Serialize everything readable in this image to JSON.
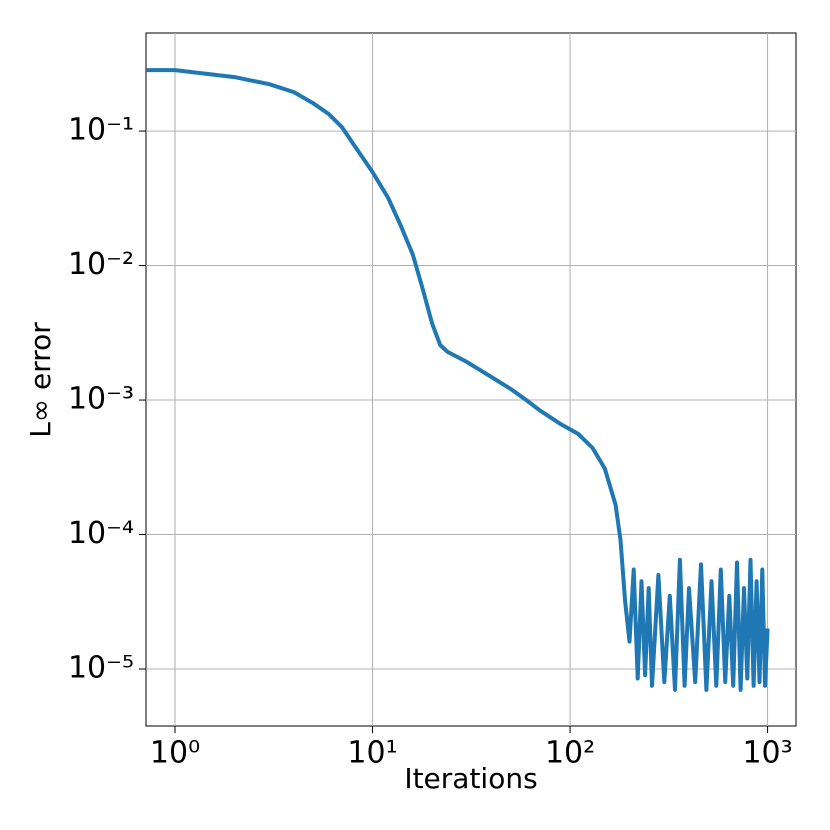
{
  "chart_data": {
    "type": "line",
    "xlabel": "Iterations",
    "ylabel": "L∞ error",
    "xscale": "log",
    "yscale": "log",
    "grid": true,
    "color": "#1f77b4",
    "xlim": [
      0.713,
      1393
    ],
    "ylim": [
      3.77e-06,
      0.536
    ],
    "xticks": [
      {
        "value": 1,
        "label": "10⁰"
      },
      {
        "value": 10,
        "label": "10¹"
      },
      {
        "value": 100,
        "label": "10²"
      },
      {
        "value": 1000,
        "label": "10³"
      }
    ],
    "yticks": [
      {
        "value": 0.1,
        "label": "10⁻¹"
      },
      {
        "value": 0.01,
        "label": "10⁻²"
      },
      {
        "value": 0.001,
        "label": "10⁻³"
      },
      {
        "value": 0.0001,
        "label": "10⁻⁴"
      },
      {
        "value": 1e-05,
        "label": "10⁻⁵"
      }
    ],
    "x": [
      0.72,
      1,
      2,
      3,
      4,
      5,
      6,
      7,
      8,
      10,
      12,
      14,
      16,
      18,
      20,
      22,
      24,
      30,
      40,
      50,
      60,
      70,
      90,
      110,
      130,
      150,
      170,
      180,
      190,
      200,
      210,
      220,
      230,
      240,
      250,
      260,
      280,
      300,
      320,
      340,
      360,
      380,
      400,
      430,
      460,
      490,
      520,
      550,
      580,
      610,
      640,
      670,
      700,
      730,
      760,
      790,
      820,
      850,
      880,
      910,
      940,
      970,
      1000
    ],
    "values": [
      0.284,
      0.284,
      0.252,
      0.223,
      0.195,
      0.161,
      0.134,
      0.107,
      0.08,
      0.0496,
      0.0318,
      0.0193,
      0.012,
      0.00658,
      0.00373,
      0.00256,
      0.00228,
      0.00192,
      0.00148,
      0.00121,
      0.001,
      0.00084,
      0.00066,
      0.00056,
      0.00044,
      0.00031,
      0.000166,
      9.1e-05,
      3.2e-05,
      1.6e-05,
      5.5e-05,
      8.5e-06,
      4.5e-05,
      9e-06,
      4e-05,
      7.5e-06,
      5e-05,
      8e-06,
      3.5e-05,
      7e-06,
      6.5e-05,
      7.5e-06,
      4e-05,
      8e-06,
      6e-05,
      7e-06,
      4.5e-05,
      7.5e-06,
      5.5e-05,
      8e-06,
      3.5e-05,
      7.5e-06,
      6.2e-05,
      7e-06,
      4e-05,
      8.5e-06,
      6.5e-05,
      7.5e-06,
      4.5e-05,
      8e-06,
      5.5e-05,
      7.5e-06,
      2e-05
    ]
  }
}
